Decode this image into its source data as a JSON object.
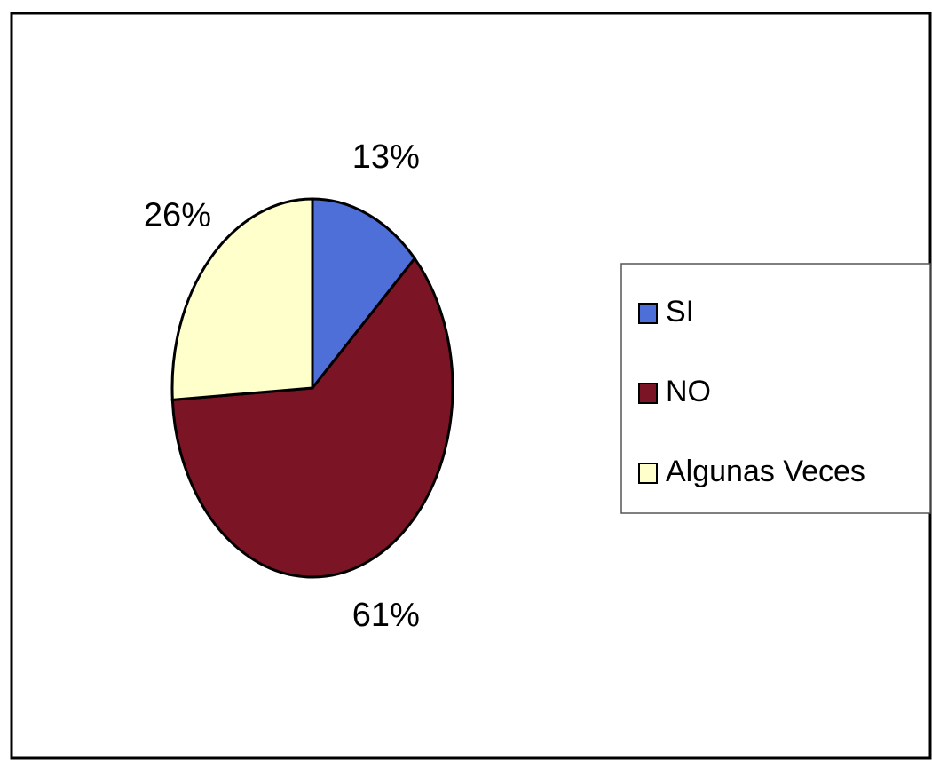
{
  "chart_data": {
    "type": "pie",
    "categories": [
      "SI",
      "NO",
      "Algunas Veces"
    ],
    "values": [
      13,
      61,
      26
    ],
    "value_labels": [
      "13%",
      "61%",
      "26%"
    ],
    "colors": [
      "#4f6fd8",
      "#7b1424",
      "#ffffcc"
    ],
    "legend": "right"
  }
}
